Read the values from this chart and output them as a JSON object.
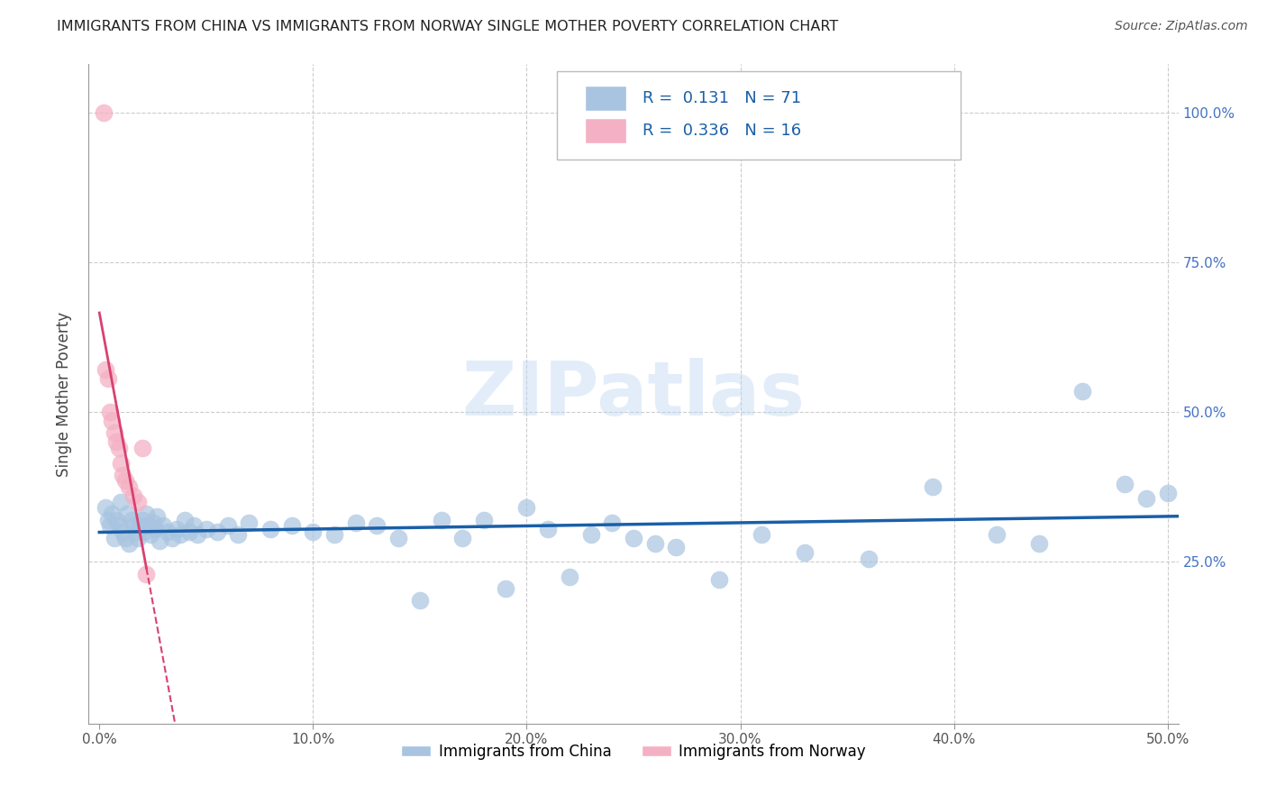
{
  "title": "IMMIGRANTS FROM CHINA VS IMMIGRANTS FROM NORWAY SINGLE MOTHER POVERTY CORRELATION CHART",
  "source": "Source: ZipAtlas.com",
  "ylabel": "Single Mother Poverty",
  "xlim": [
    -0.005,
    0.505
  ],
  "ylim": [
    -0.02,
    1.08
  ],
  "xticks": [
    0.0,
    0.1,
    0.2,
    0.3,
    0.4,
    0.5
  ],
  "xticklabels": [
    "0.0%",
    "10.0%",
    "20.0%",
    "30.0%",
    "40.0%",
    "50.0%"
  ],
  "yticks": [
    0.0,
    0.25,
    0.5,
    0.75,
    1.0
  ],
  "yticklabels_right": [
    "",
    "25.0%",
    "50.0%",
    "75.0%",
    "100.0%"
  ],
  "china_R": 0.131,
  "china_N": 71,
  "norway_R": 0.336,
  "norway_N": 16,
  "china_color": "#a8c4e0",
  "norway_color": "#f4b0c4",
  "china_line_color": "#1a5fa8",
  "norway_line_color": "#d94070",
  "legend_label_china": "Immigrants from China",
  "legend_label_norway": "Immigrants from Norway",
  "watermark": "ZIPatlas",
  "background_color": "#ffffff",
  "grid_color": "#cccccc",
  "china_x": [
    0.003,
    0.004,
    0.005,
    0.006,
    0.007,
    0.008,
    0.009,
    0.01,
    0.011,
    0.012,
    0.013,
    0.014,
    0.015,
    0.016,
    0.017,
    0.018,
    0.019,
    0.02,
    0.021,
    0.022,
    0.023,
    0.024,
    0.025,
    0.026,
    0.027,
    0.028,
    0.03,
    0.032,
    0.034,
    0.036,
    0.038,
    0.04,
    0.042,
    0.044,
    0.046,
    0.05,
    0.055,
    0.06,
    0.065,
    0.07,
    0.08,
    0.09,
    0.1,
    0.11,
    0.12,
    0.13,
    0.14,
    0.15,
    0.16,
    0.17,
    0.18,
    0.19,
    0.2,
    0.21,
    0.22,
    0.23,
    0.24,
    0.25,
    0.26,
    0.27,
    0.29,
    0.31,
    0.33,
    0.36,
    0.39,
    0.42,
    0.44,
    0.46,
    0.48,
    0.49,
    0.5
  ],
  "china_y": [
    0.34,
    0.32,
    0.31,
    0.33,
    0.29,
    0.32,
    0.31,
    0.35,
    0.3,
    0.29,
    0.33,
    0.28,
    0.32,
    0.31,
    0.3,
    0.29,
    0.31,
    0.32,
    0.3,
    0.33,
    0.31,
    0.295,
    0.315,
    0.305,
    0.325,
    0.285,
    0.31,
    0.3,
    0.29,
    0.305,
    0.295,
    0.32,
    0.3,
    0.31,
    0.295,
    0.305,
    0.3,
    0.31,
    0.295,
    0.315,
    0.305,
    0.31,
    0.3,
    0.295,
    0.315,
    0.31,
    0.29,
    0.185,
    0.32,
    0.29,
    0.32,
    0.205,
    0.34,
    0.305,
    0.225,
    0.295,
    0.315,
    0.29,
    0.28,
    0.275,
    0.22,
    0.295,
    0.265,
    0.255,
    0.375,
    0.295,
    0.28,
    0.535,
    0.38,
    0.355,
    0.365
  ],
  "norway_x": [
    0.002,
    0.003,
    0.004,
    0.005,
    0.006,
    0.007,
    0.008,
    0.009,
    0.01,
    0.011,
    0.012,
    0.014,
    0.016,
    0.018,
    0.02,
    0.022
  ],
  "norway_y": [
    1.0,
    0.57,
    0.555,
    0.5,
    0.485,
    0.465,
    0.45,
    0.44,
    0.415,
    0.395,
    0.385,
    0.375,
    0.36,
    0.35,
    0.44,
    0.23
  ]
}
